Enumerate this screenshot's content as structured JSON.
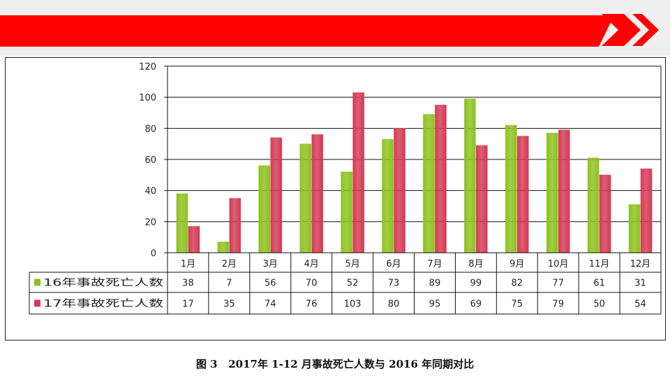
{
  "header": {
    "band_color": "#ff0000",
    "chevron_color": "#ff0000",
    "chevron_icon": "double-chevron-right-icon"
  },
  "caption": "图 3   2017年 1-12 月事故死亡人数与 2016 年同期对比",
  "chart_data": {
    "type": "bar",
    "categories": [
      "1月",
      "2月",
      "3月",
      "4月",
      "5月",
      "6月",
      "7月",
      "8月",
      "9月",
      "10月",
      "11月",
      "12月"
    ],
    "series": [
      {
        "name": "16年事故死亡人数",
        "color": "#8dc21f",
        "values": [
          38,
          7,
          56,
          70,
          52,
          73,
          89,
          99,
          82,
          77,
          61,
          31
        ]
      },
      {
        "name": "17年事故死亡人数",
        "color": "#d43a54",
        "values": [
          17,
          35,
          74,
          76,
          103,
          80,
          95,
          69,
          75,
          79,
          50,
          54
        ]
      }
    ],
    "ylim": [
      0,
      120
    ],
    "yticks": [
      0,
      20,
      40,
      60,
      80,
      100,
      120
    ],
    "grid": true,
    "legend": "data-table"
  }
}
